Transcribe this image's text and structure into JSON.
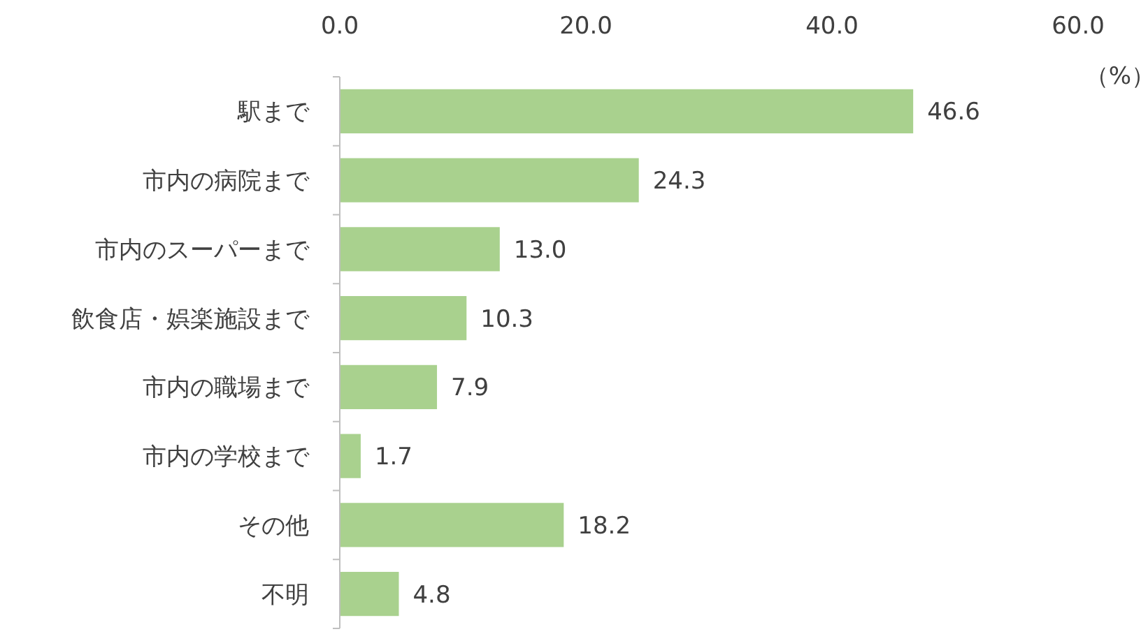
{
  "chart_data": {
    "type": "bar",
    "orientation": "horizontal",
    "xlabel": "（%）",
    "categories": [
      "駅まで",
      "市内の病院まで",
      "市内のスーパーまで",
      "飲食店・娯楽施設まで",
      "市内の職場まで",
      "市内の学校まで",
      "その他",
      "不明"
    ],
    "values": [
      46.6,
      24.3,
      13.0,
      10.3,
      7.9,
      1.7,
      18.2,
      4.8
    ],
    "value_labels": [
      "46.6",
      "24.3",
      "13.0",
      "10.3",
      "7.9",
      "1.7",
      "18.2",
      "4.8"
    ],
    "color": "#a9d18e",
    "xlim": [
      0,
      60
    ],
    "xticks": [
      {
        "value": 0,
        "label": "0.0"
      },
      {
        "value": 20,
        "label": "20.0"
      },
      {
        "value": 40,
        "label": "40.0"
      },
      {
        "value": 60,
        "label": "60.0"
      }
    ],
    "grid": false
  }
}
